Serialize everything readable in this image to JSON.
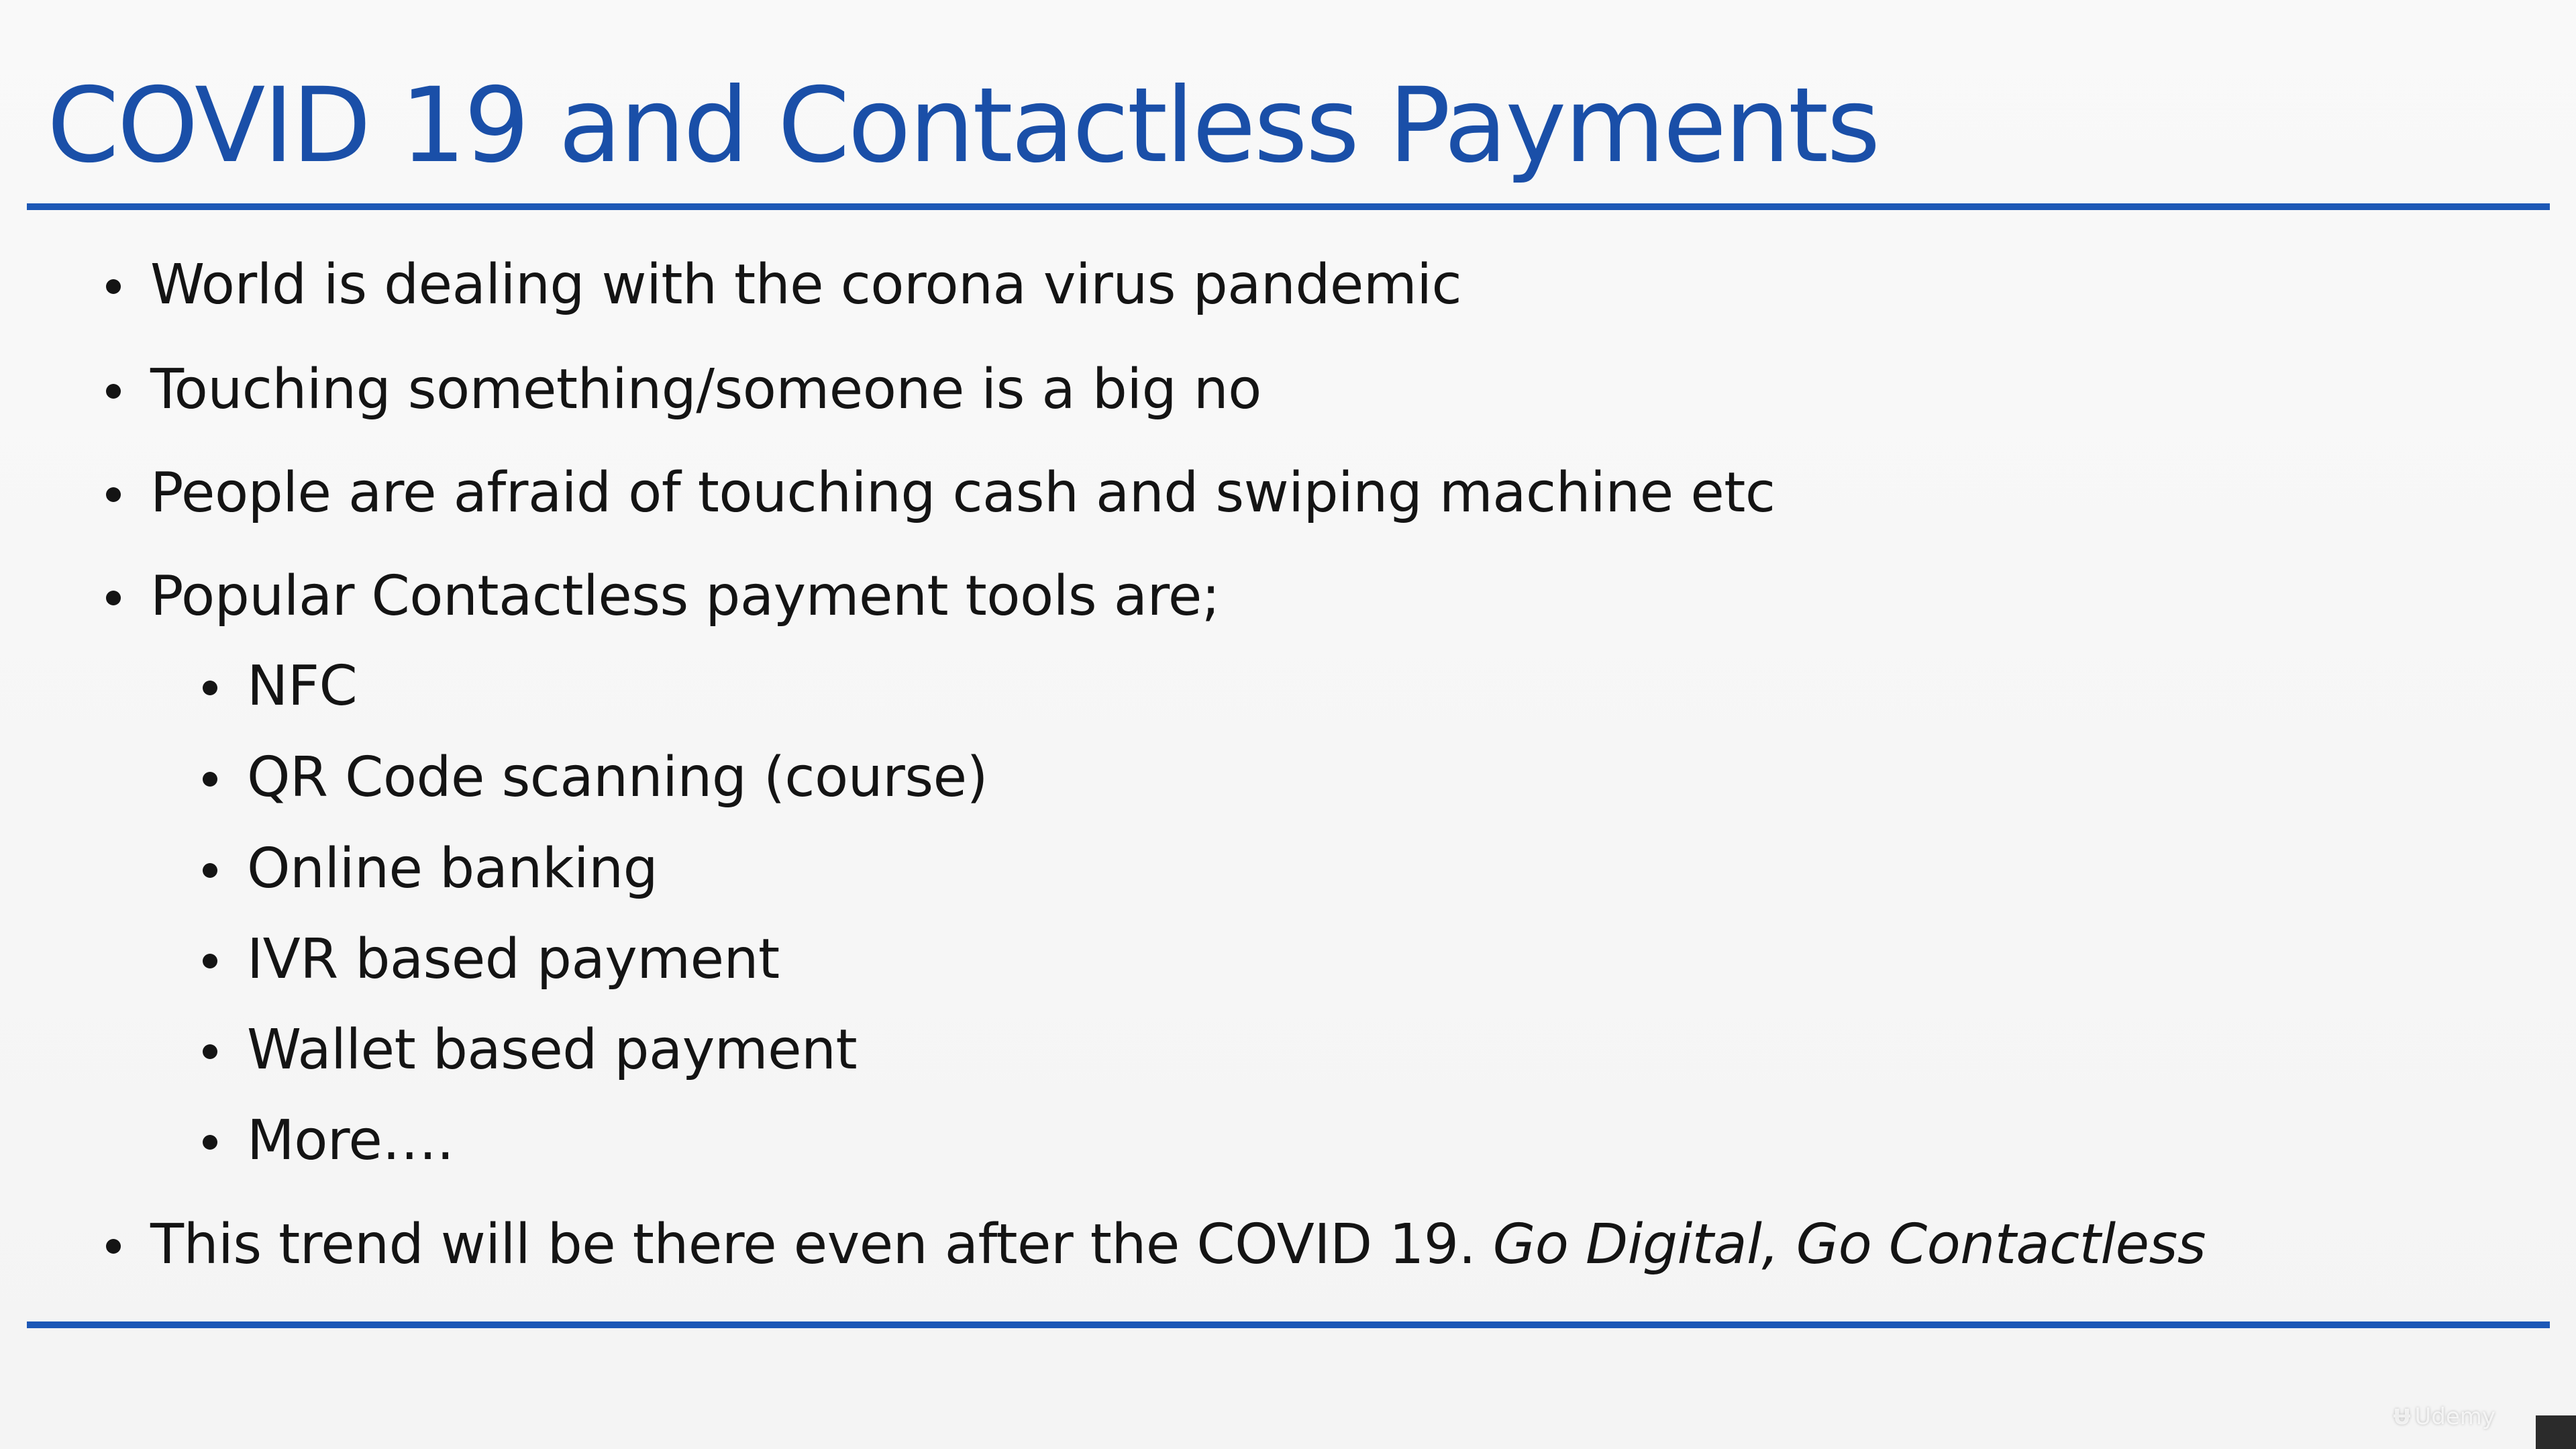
{
  "slide": {
    "title": "COVID 19 and Contactless Payments",
    "bullets": [
      "World is dealing with the corona virus pandemic",
      "Touching something/someone is a big no",
      "People are afraid of touching cash and swiping machine etc",
      "Popular Contactless payment tools are;"
    ],
    "sub_bullets": [
      "NFC",
      "QR Code scanning (course)",
      "Online banking",
      "IVR based payment",
      "Wallet based payment",
      "More…."
    ],
    "final_bullet": {
      "text": "This trend will be there even after the COVID 19. ",
      "italic": "Go Digital, Go Contactless"
    }
  },
  "watermark": {
    "logo": "udemy-logo-icon",
    "text": "Udemy"
  },
  "colors": {
    "title": "#1a4fa8",
    "rule": "#1d58b6",
    "text": "#141414",
    "background": "#f7f7f7"
  }
}
